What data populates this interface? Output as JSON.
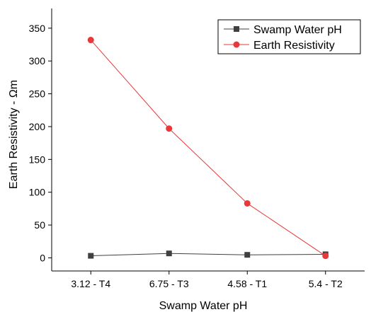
{
  "chart_data": {
    "type": "line",
    "title": "",
    "xlabel": "Swamp Water pH",
    "ylabel": "Earth Resistivity - Ωm",
    "categories": [
      "3.12 - T4",
      "6.75 - T3",
      "4.58 - T1",
      "5.4 - T2"
    ],
    "ylim": [
      -20,
      380
    ],
    "yticks": [
      0,
      50,
      100,
      150,
      200,
      250,
      300,
      350
    ],
    "grid": false,
    "legend_position": "top-right",
    "series": [
      {
        "name": "Swamp Water pH",
        "values": [
          3.12,
          6.75,
          4.58,
          5.4
        ],
        "color": "#404040",
        "marker": "square"
      },
      {
        "name": "Earth Resistivity",
        "values": [
          332,
          197,
          83,
          3
        ],
        "color": "#e8383a",
        "marker": "circle"
      }
    ]
  }
}
